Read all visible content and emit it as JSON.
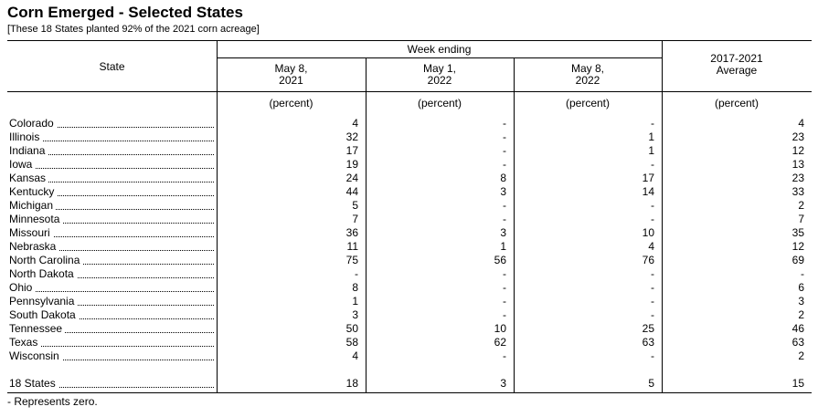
{
  "header": {
    "title": "Corn Emerged - Selected States",
    "subtitle": "[These 18 States planted 92% of the 2021 corn acreage]"
  },
  "table": {
    "state_header": "State",
    "group_header": "Week ending",
    "columns": [
      {
        "line1": "May 8,",
        "line2": "2021"
      },
      {
        "line1": "May 1,",
        "line2": "2022"
      },
      {
        "line1": "May 8,",
        "line2": "2022"
      },
      {
        "line1": "2017-2021",
        "line2": "Average"
      }
    ],
    "unit": "(percent)",
    "rows": [
      [
        "Colorado",
        4,
        "-",
        "-",
        4
      ],
      [
        "Illinois",
        32,
        "-",
        1,
        23
      ],
      [
        "Indiana",
        17,
        "-",
        1,
        12
      ],
      [
        "Iowa",
        19,
        "-",
        "-",
        13
      ],
      [
        "Kansas",
        24,
        8,
        17,
        23
      ],
      [
        "Kentucky",
        44,
        3,
        14,
        33
      ],
      [
        "Michigan",
        5,
        "-",
        "-",
        2
      ],
      [
        "Minnesota",
        7,
        "-",
        "-",
        7
      ],
      [
        "Missouri",
        36,
        3,
        10,
        35
      ],
      [
        "Nebraska",
        11,
        1,
        4,
        12
      ],
      [
        "North Carolina",
        75,
        56,
        76,
        69
      ],
      [
        "North Dakota",
        "-",
        "-",
        "-",
        "-"
      ],
      [
        "Ohio",
        8,
        "-",
        "-",
        6
      ],
      [
        "Pennsylvania",
        1,
        "-",
        "-",
        3
      ],
      [
        "South Dakota",
        3,
        "-",
        "-",
        2
      ],
      [
        "Tennessee",
        50,
        10,
        25,
        46
      ],
      [
        "Texas",
        58,
        62,
        63,
        63
      ],
      [
        "Wisconsin",
        4,
        "-",
        "-",
        2
      ]
    ],
    "total": [
      "18 States",
      18,
      3,
      5,
      15
    ]
  },
  "footnote": "- Represents zero."
}
